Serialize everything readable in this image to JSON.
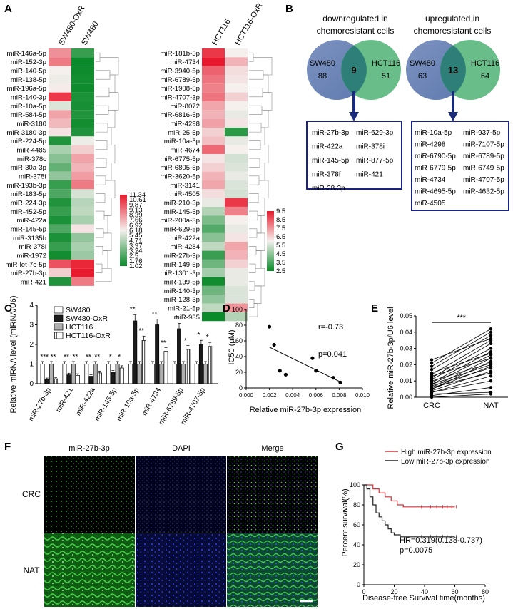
{
  "panels": {
    "A": {
      "letter": "A",
      "heat1": {
        "columns": [
          "SW480-OxR",
          "SW480"
        ],
        "rows": [
          "miR-146a-5p",
          "miR-152-3p",
          "miR-140-5p",
          "miR-138-5p",
          "miR-196a-5p",
          "miR-140-3p",
          "miR-10a-5p",
          "miR-584-5p",
          "miR-3180",
          "miR-3180-3p",
          "miR-224-5p",
          "miR-4485",
          "miR-378c",
          "miR-30a-3p",
          "miR-378f",
          "miR-193b-3p",
          "miR-183-5p",
          "miR-224-3p",
          "miR-452-5p",
          "miR-422a",
          "miR-145-5p",
          "miR-3135b",
          "miR-378i",
          "miR-1972",
          "miR-let-7c-5p",
          "miR-27b-3p",
          "miR-421"
        ],
        "values": [
          [
            8.5,
            2.0
          ],
          [
            9.0,
            1.0
          ],
          [
            6.2,
            1.1
          ],
          [
            6.0,
            1.2
          ],
          [
            6.3,
            1.1
          ],
          [
            10.6,
            1.4
          ],
          [
            5.6,
            1.3
          ],
          [
            8.0,
            1.5
          ],
          [
            7.5,
            1.2
          ],
          [
            6.5,
            1.5
          ],
          [
            1.5,
            6.0
          ],
          [
            4.5,
            7.0
          ],
          [
            3.8,
            8.0
          ],
          [
            3.0,
            7.6
          ],
          [
            4.0,
            8.2
          ],
          [
            2.0,
            9.0
          ],
          [
            2.5,
            5.5
          ],
          [
            1.5,
            4.8
          ],
          [
            2.0,
            5.0
          ],
          [
            1.4,
            4.5
          ],
          [
            2.5,
            6.5
          ],
          [
            1.4,
            4.0
          ],
          [
            2.0,
            4.5
          ],
          [
            1.2,
            4.2
          ],
          [
            10.0,
            11.0
          ],
          [
            7.0,
            11.3
          ],
          [
            1.5,
            9.0
          ]
        ],
        "legend_ticks": [
          "11.34",
          "10.61",
          "9.87",
          "9.13",
          "8.39",
          "7.66",
          "6.92",
          "6.18",
          "5.45",
          "4.71",
          "3.97",
          "3.24",
          "2.5",
          "1.76",
          "1.02"
        ]
      },
      "heat2": {
        "columns": [
          "HCT116",
          "HCT116-OxR"
        ],
        "rows": [
          "miR-181b-5p",
          "miR-4734",
          "miR-3940-5p",
          "miR-6789-5p",
          "miR-1908-5p",
          "miR-4707-3p",
          "miR-8072",
          "miR-6816-5p",
          "miR-4298",
          "miR-25-5p",
          "miR-10a-5p",
          "miR-4674",
          "miR-6775-5p",
          "miR-6805-5p",
          "miR-3620-5p",
          "miR-3141",
          "miR-4505",
          "miR-210-3p",
          "miR-145-5p",
          "miR-200a-3p",
          "miR-629-5p",
          "miR-422a",
          "miR-4284",
          "miR-27b-3p",
          "miR-149-5p",
          "miR-1301-3p",
          "miR-139-5p",
          "miR-140-3p",
          "miR-128-3p",
          "miR-21-5p",
          "miR-935"
        ],
        "values": [
          [
            9.0,
            6.0
          ],
          [
            9.5,
            7.0
          ],
          [
            8.3,
            6.3
          ],
          [
            8.0,
            6.2
          ],
          [
            7.8,
            6.0
          ],
          [
            8.0,
            6.5
          ],
          [
            7.2,
            6.0
          ],
          [
            7.0,
            5.8
          ],
          [
            7.3,
            6.2
          ],
          [
            6.5,
            3.0
          ],
          [
            6.8,
            5.8
          ],
          [
            8.2,
            6.0
          ],
          [
            6.2,
            5.5
          ],
          [
            6.5,
            5.6
          ],
          [
            7.0,
            5.8
          ],
          [
            7.2,
            5.6
          ],
          [
            6.3,
            5.5
          ],
          [
            5.8,
            9.0
          ],
          [
            5.0,
            7.8
          ],
          [
            4.2,
            6.0
          ],
          [
            3.6,
            5.8
          ],
          [
            4.4,
            6.2
          ],
          [
            5.2,
            7.2
          ],
          [
            3.2,
            7.0
          ],
          [
            4.0,
            6.5
          ],
          [
            4.8,
            5.8
          ],
          [
            2.6,
            5.8
          ],
          [
            4.0,
            5.6
          ],
          [
            4.5,
            5.6
          ],
          [
            5.2,
            7.5
          ],
          [
            2.5,
            5.0
          ]
        ],
        "legend_ticks": [
          "9.5",
          "8.5",
          "7.5",
          "6.5",
          "5.5",
          "4.5",
          "3.5",
          "2.5"
        ]
      }
    },
    "B": {
      "letter": "B",
      "left": {
        "title1": "downregulated in",
        "title2": "chemoresistant cells",
        "a_label": "SW480",
        "a_count": "88",
        "b_label": "HCT116",
        "b_count": "51",
        "overlap": "9",
        "list_col1": [
          "miR-27b-3p",
          "miR-422a",
          "miR-145-5p",
          "miR-378f",
          "miR-28-3p"
        ],
        "list_col2": [
          "miR-629-3p",
          "miR-378i",
          "miR-877-5p",
          "miR-421"
        ]
      },
      "right": {
        "title1": "upregulated in",
        "title2": "chemoresistant cells",
        "a_label": "SW480",
        "a_count": "63",
        "b_label": "HCT116",
        "b_count": "64",
        "overlap": "13",
        "list_col1": [
          "miR-10a-5p",
          "miR-4298",
          "miR-6790-5p",
          "miR-6779-5p",
          "miR-4734",
          "miR-4695-5p",
          "miR-4505"
        ],
        "list_col2": [
          "miR-937-5p",
          "miR-7107-5p",
          "miR-6789-5p",
          "miR-6749-5p",
          "miR-4707-5p",
          "miR-4632-5p"
        ]
      }
    },
    "C": {
      "letter": "C",
      "ylabel": "Relative miRNA level (miRNA/U6)",
      "yticks": [
        "0",
        "1",
        "2",
        "3",
        "4"
      ],
      "legend": [
        "SW480",
        "SW480-OxR",
        "HCT116",
        "HCT116-OxR"
      ],
      "categories": [
        "miR-27b-3p",
        "miR-421",
        "miR-422a",
        "miR-145-5p",
        "miR-10a-5p",
        "miR-4734",
        "miR-6789-5p",
        "miR-4707-5p"
      ],
      "sig_left": [
        "***",
        "**",
        "**",
        "*",
        "**",
        "**",
        "*",
        "*"
      ],
      "sig_right": [
        "**",
        "**",
        "**",
        "*",
        "**",
        "**",
        "*",
        "*"
      ]
    },
    "D": {
      "letter": "D",
      "ylabel": "IC50 (μM)",
      "xlabel": "Relative miR-27b-3p expression",
      "yticks": [
        "0",
        "20",
        "40",
        "60",
        "80",
        "100"
      ],
      "xticks": [
        "0.000",
        "0.002",
        "0.004",
        "0.006",
        "0.008",
        "0.010"
      ],
      "r_text": "r=-0.73",
      "p_text": "p=0.041"
    },
    "E": {
      "letter": "E",
      "ylabel": "Relative miR-27b-3p/U6 level",
      "yticks": [
        "0.00",
        "0.01",
        "0.02",
        "0.03",
        "0.04",
        "0.05"
      ],
      "xticks": [
        "CRC",
        "NAT"
      ],
      "sig": "***"
    },
    "F": {
      "letter": "F",
      "col_titles": [
        "miR-27b-3p",
        "DAPI",
        "Merge"
      ],
      "row_labels": [
        "CRC",
        "NAT"
      ]
    },
    "G": {
      "letter": "G",
      "legend_high": "High miR-27b-3p expression",
      "legend_low": "Low miR-27b-3p expression",
      "ylabel": "Percent survival(%)",
      "xlabel": "Disease-free Survival time(months)",
      "yticks": [
        "0",
        "20",
        "40",
        "60",
        "80",
        "100"
      ],
      "xticks": [
        "0",
        "20",
        "40",
        "60",
        "80"
      ],
      "hr_text": "HR=0.319(0.138-0.737)",
      "p_text": "p=0.0075",
      "high_color": "#d0343a",
      "low_color": "#222222"
    }
  },
  "chart_data": [
    {
      "type": "bar",
      "panel": "C",
      "categories": [
        "miR-27b-3p",
        "miR-421",
        "miR-422a",
        "miR-145-5p",
        "miR-10a-5p",
        "miR-4734",
        "miR-6789-5p",
        "miR-4707-5p"
      ],
      "series": [
        {
          "name": "SW480",
          "values": [
            1,
            1,
            1,
            1,
            1,
            1,
            1,
            1
          ]
        },
        {
          "name": "SW480-OxR",
          "values": [
            0.22,
            0.45,
            0.38,
            0.58,
            3.2,
            3.0,
            2.8,
            2.0
          ]
        },
        {
          "name": "HCT116",
          "values": [
            1,
            1,
            1,
            1,
            1,
            1,
            1,
            1
          ]
        },
        {
          "name": "HCT116-OxR",
          "values": [
            0.25,
            0.42,
            0.55,
            0.8,
            2.2,
            1.65,
            1.75,
            1.9
          ]
        }
      ],
      "ylabel": "Relative miRNA level (miRNA/U6)",
      "ylim": [
        0,
        4
      ]
    },
    {
      "type": "scatter",
      "panel": "D",
      "x": [
        0.002,
        0.0024,
        0.0029,
        0.0034,
        0.0057,
        0.006,
        0.0075,
        0.0081
      ],
      "y": [
        78,
        55,
        22,
        17,
        38,
        22,
        13,
        7
      ],
      "fit_line": {
        "x": [
          0.002,
          0.0082
        ],
        "y": [
          52,
          7
        ]
      },
      "xlabel": "Relative miR-27b-3p expression",
      "ylabel": "IC50 (μM)",
      "xlim": [
        0,
        0.01
      ],
      "ylim": [
        0,
        100
      ]
    },
    {
      "type": "line",
      "panel": "E",
      "categories": [
        "CRC",
        "NAT"
      ],
      "pairs": [
        [
          0.0,
          0.002
        ],
        [
          0.001,
          0.006
        ],
        [
          0.002,
          0.003
        ],
        [
          0.003,
          0.01
        ],
        [
          0.003,
          0.013
        ],
        [
          0.004,
          0.016
        ],
        [
          0.005,
          0.019
        ],
        [
          0.005,
          0.022
        ],
        [
          0.006,
          0.015
        ],
        [
          0.006,
          0.024
        ],
        [
          0.007,
          0.018
        ],
        [
          0.008,
          0.026
        ],
        [
          0.008,
          0.02
        ],
        [
          0.009,
          0.028
        ],
        [
          0.01,
          0.021
        ],
        [
          0.011,
          0.03
        ],
        [
          0.012,
          0.033
        ],
        [
          0.013,
          0.024
        ],
        [
          0.014,
          0.035
        ],
        [
          0.015,
          0.027
        ],
        [
          0.017,
          0.038
        ],
        [
          0.019,
          0.04
        ],
        [
          0.021,
          0.042
        ],
        [
          0.023,
          0.036
        ]
      ],
      "ylabel": "Relative miR-27b-3p/U6 level",
      "ylim": [
        0,
        0.05
      ]
    },
    {
      "type": "line",
      "panel": "G",
      "series": [
        {
          "name": "High miR-27b-3p expression",
          "x": [
            0,
            4,
            6,
            8,
            10,
            12,
            14,
            16,
            18,
            20,
            22,
            24,
            26,
            30,
            34,
            60
          ],
          "y": [
            100,
            100,
            96,
            96,
            92,
            92,
            88,
            88,
            84,
            84,
            80,
            80,
            78,
            78,
            78,
            78
          ]
        },
        {
          "name": "Low miR-27b-3p expression",
          "x": [
            0,
            2,
            4,
            6,
            8,
            10,
            12,
            14,
            16,
            18,
            20,
            24,
            30,
            60
          ],
          "y": [
            100,
            96,
            88,
            80,
            72,
            68,
            64,
            60,
            56,
            52,
            50,
            48,
            48,
            48
          ]
        }
      ],
      "xlabel": "Disease-free Survival time(months)",
      "ylabel": "Percent survival(%)",
      "xlim": [
        0,
        80
      ],
      "ylim": [
        0,
        100
      ]
    }
  ]
}
